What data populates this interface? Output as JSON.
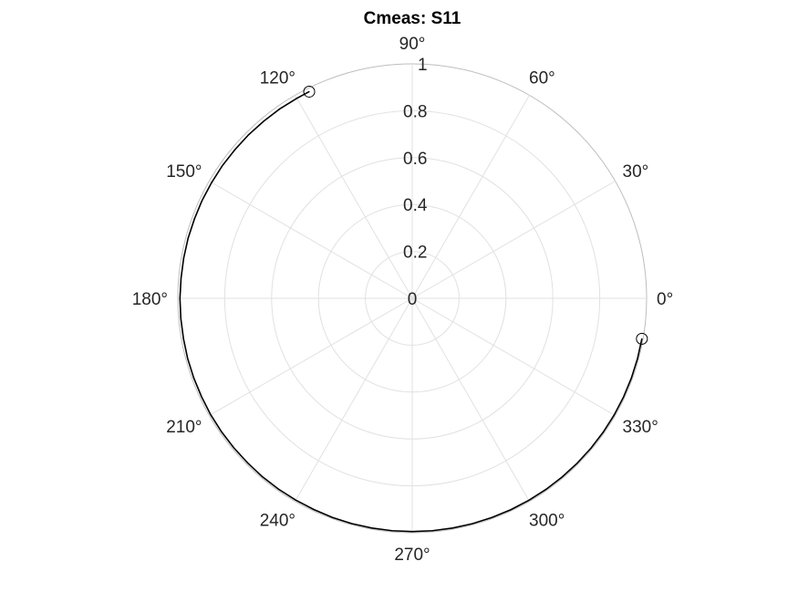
{
  "chart_data": {
    "type": "polar",
    "title": "Cmeas: S11",
    "r_lim": [
      0,
      1
    ],
    "r_ticks": [
      {
        "value": 0,
        "label": "0"
      },
      {
        "value": 0.2,
        "label": "0.2"
      },
      {
        "value": 0.4,
        "label": "0.4"
      },
      {
        "value": 0.6,
        "label": "0.6"
      },
      {
        "value": 0.8,
        "label": "0.8"
      },
      {
        "value": 1,
        "label": "1"
      }
    ],
    "theta_ticks": [
      {
        "deg": 0,
        "label": "0°"
      },
      {
        "deg": 30,
        "label": "30°"
      },
      {
        "deg": 60,
        "label": "60°"
      },
      {
        "deg": 90,
        "label": "90°"
      },
      {
        "deg": 120,
        "label": "120°"
      },
      {
        "deg": 150,
        "label": "150°"
      },
      {
        "deg": 180,
        "label": "180°"
      },
      {
        "deg": 210,
        "label": "210°"
      },
      {
        "deg": 240,
        "label": "240°"
      },
      {
        "deg": 270,
        "label": "270°"
      },
      {
        "deg": 300,
        "label": "300°"
      },
      {
        "deg": 330,
        "label": "330°"
      }
    ],
    "grid": true,
    "series": [
      {
        "color": "#000000",
        "theta_deg": [
          116.5,
          120,
          125,
          130,
          135,
          140,
          145,
          150,
          155,
          160,
          165,
          170,
          175,
          180,
          185,
          190,
          195,
          200,
          205,
          210,
          215,
          220,
          225,
          230,
          235,
          240,
          245,
          250,
          255,
          260,
          265,
          270,
          275,
          280,
          285,
          290,
          295,
          300,
          305,
          310,
          315,
          320,
          325,
          330,
          335,
          340,
          345,
          350
        ],
        "r": [
          0.985,
          0.985,
          0.986,
          0.986,
          0.987,
          0.987,
          0.988,
          0.988,
          0.989,
          0.989,
          0.99,
          0.99,
          0.99,
          0.991,
          0.991,
          0.991,
          0.992,
          0.992,
          0.992,
          0.993,
          0.993,
          0.993,
          0.993,
          0.994,
          0.994,
          0.994,
          0.994,
          0.995,
          0.995,
          0.995,
          0.995,
          0.995,
          0.995,
          0.995,
          0.995,
          0.995,
          0.995,
          0.995,
          0.995,
          0.995,
          0.995,
          0.995,
          0.995,
          0.995,
          0.995,
          0.995,
          0.995,
          0.995
        ]
      }
    ],
    "markers": [
      {
        "theta_deg": 116.5,
        "r": 0.985,
        "shape": "circle"
      },
      {
        "theta_deg": 350,
        "r": 0.995,
        "shape": "circle"
      }
    ]
  }
}
